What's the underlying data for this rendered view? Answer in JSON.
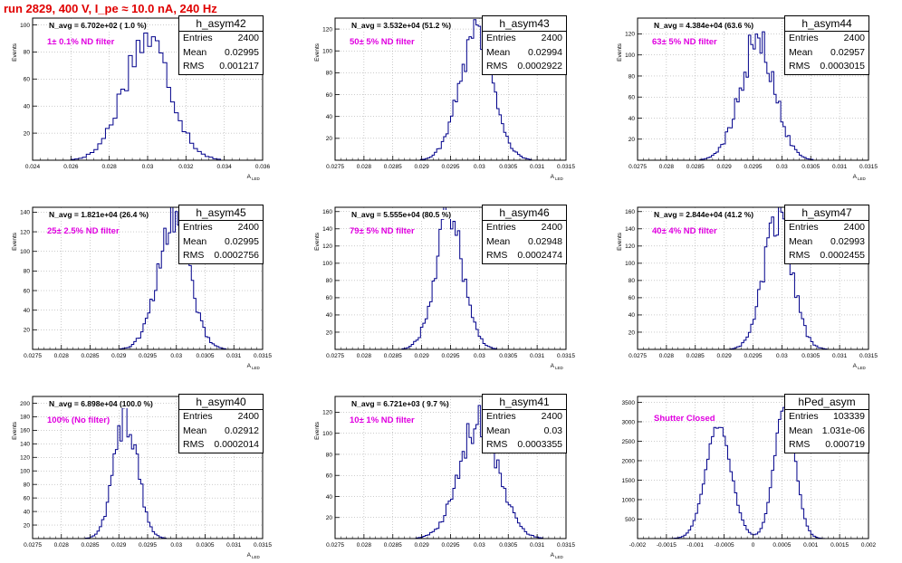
{
  "page_title": "run 2829,   400 V, I_pe ≈ 10.0 nA, 240 Hz",
  "colors": {
    "histogram": "#00008b",
    "title": "#e00000",
    "note": "#e000e0",
    "grid": "#9a9a9a"
  },
  "chart_data": [
    {
      "type": "histogram",
      "name": "h_asym42",
      "stats": {
        "entries_label": "Entries",
        "entries": "2400",
        "mean_label": "Mean",
        "mean": "0.02995",
        "rms_label": "RMS",
        "rms": "0.001217"
      },
      "annotation": "N_avg = 6.702e+02 ( 1.0 %)",
      "note": "1± 0.1% ND filter",
      "ylabel": "Events",
      "xlabel": "A",
      "xlabel_sub": "LED",
      "xlim": [
        0.024,
        0.036
      ],
      "ylim": [
        0,
        105
      ],
      "xticks": [
        0.024,
        0.026,
        0.028,
        0.03,
        0.032,
        0.034,
        0.036
      ],
      "xtick_labels": [
        "0.024",
        "0.026",
        "0.028",
        "0.03",
        "0.032",
        "0.034",
        "0.036"
      ],
      "yticks": [
        20,
        40,
        60,
        80,
        100
      ],
      "ytick_labels": [
        "20",
        "40",
        "60",
        "80",
        "100"
      ],
      "mean": 0.02995,
      "sigma": 0.001217,
      "peak": 90,
      "bins": 60
    },
    {
      "type": "histogram",
      "name": "h_asym43",
      "stats": {
        "entries_label": "Entries",
        "entries": "2400",
        "mean_label": "Mean",
        "mean": "0.02994",
        "rms_label": "RMS",
        "rms": "0.0002922"
      },
      "annotation": "N_avg = 3.532e+04 (51.2 %)",
      "note": "50± 5% ND filter",
      "ylabel": "Events",
      "xlabel": "A",
      "xlabel_sub": "LED",
      "xlim": [
        0.0275,
        0.0315
      ],
      "ylim": [
        0,
        130
      ],
      "xticks": [
        0.0275,
        0.028,
        0.0285,
        0.029,
        0.0295,
        0.03,
        0.0305,
        0.031,
        0.0315
      ],
      "xtick_labels": [
        "0.0275",
        "0.028",
        "0.0285",
        "0.029",
        "0.0295",
        "0.03",
        "0.0305",
        "0.031",
        "0.0315"
      ],
      "yticks": [
        20,
        40,
        60,
        80,
        100,
        120
      ],
      "ytick_labels": [
        "20",
        "40",
        "60",
        "80",
        "100",
        "120"
      ],
      "mean": 0.02994,
      "sigma": 0.0002922,
      "peak": 118,
      "bins": 100
    },
    {
      "type": "histogram",
      "name": "h_asym44",
      "stats": {
        "entries_label": "Entries",
        "entries": "2400",
        "mean_label": "Mean",
        "mean": "0.02957",
        "rms_label": "RMS",
        "rms": "0.0003015"
      },
      "annotation": "N_avg = 4.384e+04 (63.6 %)",
      "note": "63± 5% ND filter",
      "ylabel": "Events",
      "xlabel": "A",
      "xlabel_sub": "LED",
      "xlim": [
        0.0275,
        0.0315
      ],
      "ylim": [
        0,
        135
      ],
      "xticks": [
        0.0275,
        0.028,
        0.0285,
        0.029,
        0.0295,
        0.03,
        0.0305,
        0.031,
        0.0315
      ],
      "xtick_labels": [
        "0.0275",
        "0.028",
        "0.0285",
        "0.029",
        "0.0295",
        "0.03",
        "0.0305",
        "0.031",
        "0.0315"
      ],
      "yticks": [
        20,
        40,
        60,
        80,
        100,
        120
      ],
      "ytick_labels": [
        "20",
        "40",
        "60",
        "80",
        "100",
        "120"
      ],
      "mean": 0.02957,
      "sigma": 0.0003015,
      "peak": 112,
      "bins": 100
    },
    {
      "type": "histogram",
      "name": "h_asym45",
      "stats": {
        "entries_label": "Entries",
        "entries": "2400",
        "mean_label": "Mean",
        "mean": "0.02995",
        "rms_label": "RMS",
        "rms": "0.0002756"
      },
      "annotation": "N_avg = 1.821e+04 (26.4 %)",
      "note": "25± 2.5% ND filter",
      "ylabel": "Events",
      "xlabel": "A",
      "xlabel_sub": "LED",
      "xlim": [
        0.0275,
        0.0315
      ],
      "ylim": [
        0,
        145
      ],
      "xticks": [
        0.0275,
        0.028,
        0.0285,
        0.029,
        0.0295,
        0.03,
        0.0305,
        0.031,
        0.0315
      ],
      "xtick_labels": [
        "0.0275",
        "0.028",
        "0.0285",
        "0.029",
        "0.0295",
        "0.03",
        "0.0305",
        "0.031",
        "0.0315"
      ],
      "yticks": [
        20,
        40,
        60,
        80,
        100,
        120,
        140
      ],
      "ytick_labels": [
        "20",
        "40",
        "60",
        "80",
        "100",
        "120",
        "140"
      ],
      "mean": 0.02995,
      "sigma": 0.0002756,
      "peak": 132,
      "bins": 100
    },
    {
      "type": "histogram",
      "name": "h_asym46",
      "stats": {
        "entries_label": "Entries",
        "entries": "2400",
        "mean_label": "Mean",
        "mean": "0.02948",
        "rms_label": "RMS",
        "rms": "0.0002474"
      },
      "annotation": "N_avg = 5.555e+04 (80.5 %)",
      "note": "79± 5% ND filter",
      "ylabel": "Events",
      "xlabel": "A",
      "xlabel_sub": "LED",
      "xlim": [
        0.0275,
        0.0315
      ],
      "ylim": [
        0,
        165
      ],
      "xticks": [
        0.0275,
        0.028,
        0.0285,
        0.029,
        0.0295,
        0.03,
        0.0305,
        0.031,
        0.0315
      ],
      "xtick_labels": [
        "0.0275",
        "0.028",
        "0.0285",
        "0.029",
        "0.0295",
        "0.03",
        "0.0305",
        "0.031",
        "0.0315"
      ],
      "yticks": [
        20,
        40,
        60,
        80,
        100,
        120,
        140,
        160
      ],
      "ytick_labels": [
        "20",
        "40",
        "60",
        "80",
        "100",
        "120",
        "140",
        "160"
      ],
      "mean": 0.02948,
      "sigma": 0.0002474,
      "peak": 150,
      "bins": 100
    },
    {
      "type": "histogram",
      "name": "h_asym47",
      "stats": {
        "entries_label": "Entries",
        "entries": "2400",
        "mean_label": "Mean",
        "mean": "0.02993",
        "rms_label": "RMS",
        "rms": "0.0002455"
      },
      "annotation": "N_avg = 2.844e+04 (41.2 %)",
      "note": "40± 4% ND filter",
      "ylabel": "Events",
      "xlabel": "A",
      "xlabel_sub": "LED",
      "xlim": [
        0.0275,
        0.0315
      ],
      "ylim": [
        0,
        165
      ],
      "xticks": [
        0.0275,
        0.028,
        0.0285,
        0.029,
        0.0295,
        0.03,
        0.0305,
        0.031,
        0.0315
      ],
      "xtick_labels": [
        "0.0275",
        "0.028",
        "0.0285",
        "0.029",
        "0.0295",
        "0.03",
        "0.0305",
        "0.031",
        "0.0315"
      ],
      "yticks": [
        20,
        40,
        60,
        80,
        100,
        120,
        140,
        160
      ],
      "ytick_labels": [
        "20",
        "40",
        "60",
        "80",
        "100",
        "120",
        "140",
        "160"
      ],
      "mean": 0.02993,
      "sigma": 0.0002455,
      "peak": 150,
      "bins": 100
    },
    {
      "type": "histogram",
      "name": "h_asym40",
      "stats": {
        "entries_label": "Entries",
        "entries": "2400",
        "mean_label": "Mean",
        "mean": "0.02912",
        "rms_label": "RMS",
        "rms": "0.0002014"
      },
      "annotation": "N_avg = 6.898e+04 (100.0 %)",
      "note": "100% (No filter)",
      "ylabel": "Events",
      "xlabel": "A",
      "xlabel_sub": "LED",
      "xlim": [
        0.0275,
        0.0315
      ],
      "ylim": [
        0,
        210
      ],
      "xticks": [
        0.0275,
        0.028,
        0.0285,
        0.029,
        0.0295,
        0.03,
        0.0305,
        0.031,
        0.0315
      ],
      "xtick_labels": [
        "0.0275",
        "0.028",
        "0.0285",
        "0.029",
        "0.0295",
        "0.03",
        "0.0305",
        "0.031",
        "0.0315"
      ],
      "yticks": [
        20,
        40,
        60,
        80,
        100,
        120,
        140,
        160,
        180,
        200
      ],
      "ytick_labels": [
        "20",
        "40",
        "60",
        "80",
        "100",
        "120",
        "140",
        "160",
        "180",
        "200"
      ],
      "mean": 0.02912,
      "sigma": 0.0002014,
      "peak": 185,
      "bins": 100
    },
    {
      "type": "histogram",
      "name": "h_asym41",
      "stats": {
        "entries_label": "Entries",
        "entries": "2400",
        "mean_label": "Mean",
        "mean": "0.03",
        "rms_label": "RMS",
        "rms": "0.0003355"
      },
      "annotation": "N_avg = 6.721e+03 ( 9.7 %)",
      "note": "10± 1% ND filter",
      "ylabel": "Events",
      "xlabel": "A",
      "xlabel_sub": "LED",
      "xlim": [
        0.0275,
        0.0315
      ],
      "ylim": [
        0,
        135
      ],
      "xticks": [
        0.0275,
        0.028,
        0.0285,
        0.029,
        0.0295,
        0.03,
        0.0305,
        0.031,
        0.0315
      ],
      "xtick_labels": [
        "0.0275",
        "0.028",
        "0.0285",
        "0.029",
        "0.0295",
        "0.03",
        "0.0305",
        "0.031",
        "0.0315"
      ],
      "yticks": [
        20,
        40,
        60,
        80,
        100,
        120
      ],
      "ytick_labels": [
        "20",
        "40",
        "60",
        "80",
        "100",
        "120"
      ],
      "mean": 0.03,
      "sigma": 0.0003355,
      "peak": 112,
      "bins": 100
    },
    {
      "type": "histogram",
      "name": "hPed_asym",
      "stats": {
        "entries_label": "Entries",
        "entries": "103339",
        "mean_label": "Mean",
        "mean": "1.031e-06",
        "rms_label": "RMS",
        "rms": "0.000719"
      },
      "annotation": "",
      "note": "Shutter Closed",
      "ylabel": "",
      "xlabel": "",
      "xlabel_sub": "",
      "xlim": [
        -0.002,
        0.002
      ],
      "ylim": [
        0,
        3650
      ],
      "xticks": [
        -0.002,
        -0.0015,
        -0.001,
        -0.0005,
        0,
        0.0005,
        0.001,
        0.0015,
        0.002
      ],
      "xtick_labels": [
        "-0.002",
        "-0.0015",
        "-0.001",
        "-0.0005",
        "0",
        "0.0005",
        "0.001",
        "0.0015",
        "0.002"
      ],
      "yticks": [
        500,
        1000,
        1500,
        2000,
        2500,
        3000,
        3500
      ],
      "ytick_labels": [
        "500",
        "1000",
        "1500",
        "2000",
        "2500",
        "3000",
        "3500"
      ],
      "peaks": [
        {
          "center": -0.0006,
          "sigma": 0.00022,
          "height": 2900
        },
        {
          "center": 0.00055,
          "sigma": 0.00018,
          "height": 3420
        }
      ],
      "bins": 100
    }
  ]
}
